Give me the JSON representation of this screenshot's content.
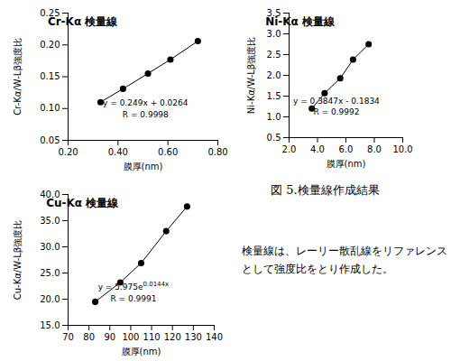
{
  "chart_data": [
    {
      "type": "line",
      "title": "Cr-Kα 検量線",
      "xlabel": "膜厚(nm)",
      "ylabel": "Cr-Kα/W-Lβ強度比",
      "x": [
        0.33,
        0.42,
        0.52,
        0.61,
        0.72
      ],
      "values": [
        0.11,
        0.131,
        0.155,
        0.177,
        0.206
      ],
      "color": "#000000",
      "marker": "circle",
      "grid": false,
      "xlim": [
        0.2,
        0.8
      ],
      "xticks": [
        {
          "value": 0.2,
          "label": "0.20"
        },
        {
          "value": 0.4,
          "label": "0.40"
        },
        {
          "value": 0.6,
          "label": "0.60"
        },
        {
          "value": 0.8,
          "label": "0.80"
        }
      ],
      "ylim": [
        0.05,
        0.25
      ],
      "yticks": [
        0.05,
        {
          "value": 0.1,
          "label": "0.10"
        },
        0.15,
        {
          "value": 0.2,
          "label": "0.20"
        },
        0.25
      ],
      "annotations": [
        {
          "text": "y = 0.249x + 0.0264"
        },
        {
          "text": "R = 0.9998"
        }
      ]
    },
    {
      "type": "line",
      "title": "Ni-Kα 検量線",
      "xlabel": "膜厚(nm)",
      "ylabel": "Ni-Kα/W-Lβ強度比",
      "x": [
        3.6,
        4.5,
        5.6,
        6.5,
        7.6
      ],
      "values": [
        1.2,
        1.57,
        1.93,
        2.38,
        2.75
      ],
      "color": "#000000",
      "marker": "circle",
      "grid": false,
      "xlim": [
        2,
        10
      ],
      "xticks": [
        {
          "value": 2,
          "label": "2.0"
        },
        {
          "value": 4,
          "label": "4.0"
        },
        {
          "value": 6,
          "label": "6.0"
        },
        {
          "value": 8,
          "label": "8.0"
        },
        {
          "value": 10,
          "label": "10.0"
        }
      ],
      "ylim": [
        0.5,
        3.5
      ],
      "yticks": [
        0.5,
        {
          "value": 1,
          "label": "1.0"
        },
        1.5,
        {
          "value": 2,
          "label": "2.0"
        },
        2.5,
        {
          "value": 3,
          "label": "3.0"
        },
        3.5
      ],
      "annotations": [
        {
          "text": "y = 0.3847x - 0.1834"
        },
        {
          "text": "R = 0.9992"
        }
      ]
    },
    {
      "type": "line",
      "title": "Cu-Kα 検量線",
      "xlabel": "膜厚(nm)",
      "ylabel": "Cu-Kα/W-Lβ強度比",
      "x": [
        83,
        95,
        105,
        117,
        127
      ],
      "values": [
        19.5,
        23.2,
        26.9,
        33.0,
        37.7
      ],
      "color": "#000000",
      "marker": "circle",
      "grid": false,
      "xlim": [
        70,
        140
      ],
      "xticks": [
        70,
        80,
        90,
        100,
        110,
        120,
        130,
        140
      ],
      "ylim": [
        15,
        40
      ],
      "yticks": [
        {
          "value": 15,
          "label": "15.0"
        },
        {
          "value": 20,
          "label": "20.0"
        },
        {
          "value": 25,
          "label": "25.0"
        },
        {
          "value": 30,
          "label": "30.0"
        },
        {
          "value": 35,
          "label": "35.0"
        },
        {
          "value": 40,
          "label": "40.0"
        }
      ],
      "annotations": [
        {
          "text": "y = 5.975e",
          "superscript": "0.0144x"
        },
        {
          "text": "R = 0.9991"
        }
      ]
    }
  ],
  "caption": "図 5.検量線作成結果",
  "note": [
    "検量線は、レーリー散乱線をリファレンス",
    "として強度比をとり作成した。"
  ]
}
